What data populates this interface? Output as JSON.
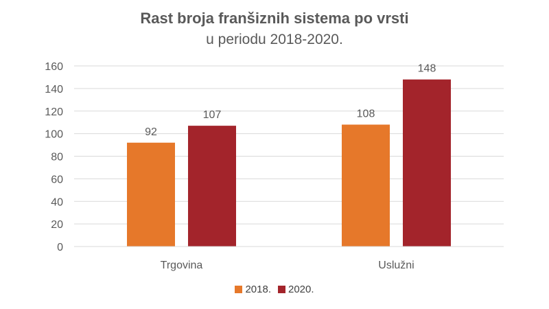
{
  "title": "Rast broja franšiznih sistema po vrsti",
  "subtitle": "u periodu 2018-2020.",
  "colors": {
    "grid": "#d9d9d9",
    "text": "#595959",
    "series": [
      "#e6782a",
      "#a3242b"
    ]
  },
  "chart_data": {
    "type": "bar",
    "title": "Rast broja franšiznih sistema po vrsti",
    "subtitle": "u periodu 2018-2020.",
    "categories": [
      "Trgovina",
      "Uslužni"
    ],
    "series": [
      {
        "name": "2018.",
        "values": [
          92,
          108
        ]
      },
      {
        "name": "2020.",
        "values": [
          107,
          148
        ]
      }
    ],
    "ylim": [
      0,
      160
    ],
    "yticks": [
      "0",
      "20",
      "40",
      "60",
      "80",
      "100",
      "120",
      "140",
      "160"
    ],
    "xlabel": "",
    "ylabel": "",
    "grid": true,
    "legend": "bottom"
  }
}
